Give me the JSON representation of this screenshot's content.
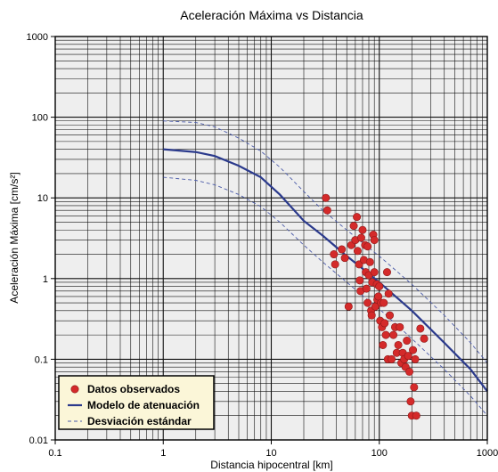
{
  "chart_data": {
    "type": "scatter",
    "title": "Aceleración Máxima vs Distancia",
    "xlabel": "Distancia hipocentral [km]",
    "ylabel": "Aceleración Máxima [cm/s²]",
    "xscale": "log",
    "yscale": "log",
    "xlim": [
      0.1,
      1000
    ],
    "ylim": [
      0.01,
      1000
    ],
    "x_ticks": [
      "0.1",
      "1",
      "10",
      "100",
      "1000"
    ],
    "y_ticks": [
      "0.01",
      "0.1",
      "1",
      "10",
      "100",
      "1000"
    ],
    "grid": true,
    "legend_position": "bottom-left",
    "colors": {
      "observed": "#d42a2a",
      "model": "#2b3a8c",
      "stddev": "#4a5aa8",
      "plot_bg": "#eeeeee",
      "legend_bg": "#fbf6d8"
    },
    "series": [
      {
        "name": "Modelo de atenuación",
        "kind": "line",
        "points": [
          [
            1,
            40
          ],
          [
            2,
            37
          ],
          [
            3,
            33
          ],
          [
            5,
            25
          ],
          [
            8,
            18
          ],
          [
            12,
            11
          ],
          [
            20,
            5.2
          ],
          [
            30,
            3.4
          ],
          [
            50,
            1.9
          ],
          [
            80,
            1.15
          ],
          [
            100,
            0.9
          ],
          [
            200,
            0.4
          ],
          [
            400,
            0.16
          ],
          [
            700,
            0.075
          ],
          [
            1000,
            0.04
          ]
        ]
      },
      {
        "name": "Desviación estándar",
        "kind": "dashed",
        "points": [
          [
            1,
            90
          ],
          [
            2,
            86
          ],
          [
            3,
            76
          ],
          [
            5,
            55
          ],
          [
            8,
            38
          ],
          [
            12,
            24
          ],
          [
            20,
            12
          ],
          [
            30,
            7
          ],
          [
            50,
            4
          ],
          [
            80,
            2.4
          ],
          [
            100,
            1.9
          ],
          [
            200,
            0.85
          ],
          [
            400,
            0.35
          ],
          [
            700,
            0.16
          ],
          [
            1000,
            0.09
          ]
        ]
      },
      {
        "name": "",
        "kind": "dashed",
        "points": [
          [
            1,
            18
          ],
          [
            2,
            16.5
          ],
          [
            3,
            14.5
          ],
          [
            5,
            11
          ],
          [
            8,
            7.8
          ],
          [
            12,
            5
          ],
          [
            20,
            2.6
          ],
          [
            30,
            1.6
          ],
          [
            50,
            0.9
          ],
          [
            80,
            0.53
          ],
          [
            100,
            0.42
          ],
          [
            200,
            0.18
          ],
          [
            400,
            0.075
          ],
          [
            700,
            0.035
          ],
          [
            1000,
            0.02
          ]
        ]
      },
      {
        "name": "Datos observados",
        "kind": "scatter",
        "points": [
          [
            32,
            10
          ],
          [
            33,
            7
          ],
          [
            38,
            2
          ],
          [
            39,
            1.5
          ],
          [
            45,
            2.3
          ],
          [
            48,
            1.8
          ],
          [
            52,
            0.45
          ],
          [
            55,
            2.6
          ],
          [
            58,
            4.5
          ],
          [
            60,
            3
          ],
          [
            62,
            5.8
          ],
          [
            63,
            2.2
          ],
          [
            65,
            1.5
          ],
          [
            66,
            0.95
          ],
          [
            67,
            0.7
          ],
          [
            68,
            3.2
          ],
          [
            70,
            4
          ],
          [
            72,
            1.7
          ],
          [
            74,
            2.6
          ],
          [
            75,
            1.2
          ],
          [
            76,
            0.75
          ],
          [
            78,
            2.5
          ],
          [
            78,
            0.5
          ],
          [
            80,
            1.1
          ],
          [
            82,
            1.6
          ],
          [
            84,
            0.4
          ],
          [
            85,
            0.35
          ],
          [
            86,
            0.9
          ],
          [
            88,
            3.5
          ],
          [
            90,
            3
          ],
          [
            90,
            1.2
          ],
          [
            92,
            0.45
          ],
          [
            95,
            0.85
          ],
          [
            96,
            0.55
          ],
          [
            98,
            0.6
          ],
          [
            100,
            0.8
          ],
          [
            102,
            0.3
          ],
          [
            104,
            0.5
          ],
          [
            106,
            0.25
          ],
          [
            108,
            0.15
          ],
          [
            110,
            0.5
          ],
          [
            112,
            0.28
          ],
          [
            115,
            0.2
          ],
          [
            118,
            1.2
          ],
          [
            120,
            0.1
          ],
          [
            122,
            0.65
          ],
          [
            125,
            0.35
          ],
          [
            130,
            0.1
          ],
          [
            135,
            0.2
          ],
          [
            140,
            0.25
          ],
          [
            145,
            0.12
          ],
          [
            150,
            0.15
          ],
          [
            155,
            0.25
          ],
          [
            160,
            0.09
          ],
          [
            165,
            0.12
          ],
          [
            170,
            0.1
          ],
          [
            175,
            0.08
          ],
          [
            180,
            0.17
          ],
          [
            185,
            0.11
          ],
          [
            190,
            0.07
          ],
          [
            195,
            0.03
          ],
          [
            200,
            0.02
          ],
          [
            205,
            0.13
          ],
          [
            210,
            0.045
          ],
          [
            215,
            0.1
          ],
          [
            220,
            0.02
          ],
          [
            240,
            0.24
          ],
          [
            260,
            0.18
          ]
        ]
      }
    ]
  }
}
